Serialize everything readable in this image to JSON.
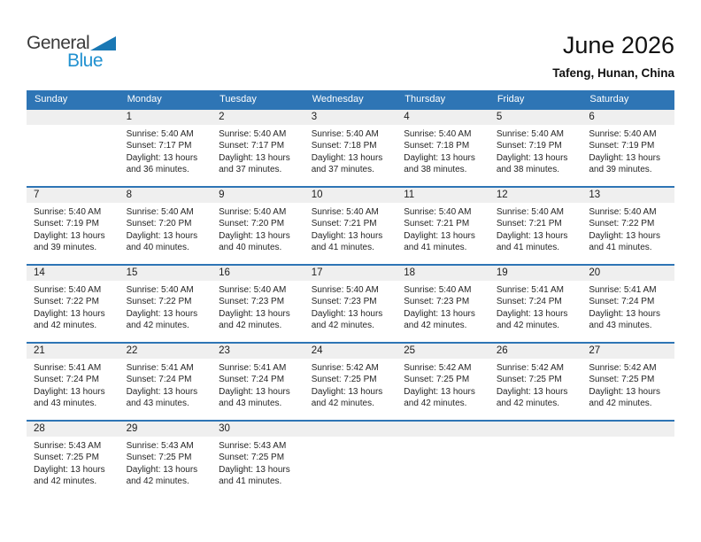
{
  "logo": {
    "part1": "General",
    "part2": "Blue"
  },
  "header": {
    "title": "June 2026",
    "location": "Tafeng, Hunan, China"
  },
  "colors": {
    "header_blue": "#2e75b5",
    "row_border_blue": "#2e75b5",
    "band_gray": "#efefef",
    "logo_text_dark": "#3b3b3b",
    "logo_text_blue": "#2191d0",
    "logo_triangle_blue": "#1a78b4"
  },
  "weekdays": [
    "Sunday",
    "Monday",
    "Tuesday",
    "Wednesday",
    "Thursday",
    "Friday",
    "Saturday"
  ],
  "weeks": [
    [
      null,
      {
        "day": "1",
        "lines": [
          "Sunrise: 5:40 AM",
          "Sunset: 7:17 PM",
          "Daylight: 13 hours",
          "and 36 minutes."
        ]
      },
      {
        "day": "2",
        "lines": [
          "Sunrise: 5:40 AM",
          "Sunset: 7:17 PM",
          "Daylight: 13 hours",
          "and 37 minutes."
        ]
      },
      {
        "day": "3",
        "lines": [
          "Sunrise: 5:40 AM",
          "Sunset: 7:18 PM",
          "Daylight: 13 hours",
          "and 37 minutes."
        ]
      },
      {
        "day": "4",
        "lines": [
          "Sunrise: 5:40 AM",
          "Sunset: 7:18 PM",
          "Daylight: 13 hours",
          "and 38 minutes."
        ]
      },
      {
        "day": "5",
        "lines": [
          "Sunrise: 5:40 AM",
          "Sunset: 7:19 PM",
          "Daylight: 13 hours",
          "and 38 minutes."
        ]
      },
      {
        "day": "6",
        "lines": [
          "Sunrise: 5:40 AM",
          "Sunset: 7:19 PM",
          "Daylight: 13 hours",
          "and 39 minutes."
        ]
      }
    ],
    [
      {
        "day": "7",
        "lines": [
          "Sunrise: 5:40 AM",
          "Sunset: 7:19 PM",
          "Daylight: 13 hours",
          "and 39 minutes."
        ]
      },
      {
        "day": "8",
        "lines": [
          "Sunrise: 5:40 AM",
          "Sunset: 7:20 PM",
          "Daylight: 13 hours",
          "and 40 minutes."
        ]
      },
      {
        "day": "9",
        "lines": [
          "Sunrise: 5:40 AM",
          "Sunset: 7:20 PM",
          "Daylight: 13 hours",
          "and 40 minutes."
        ]
      },
      {
        "day": "10",
        "lines": [
          "Sunrise: 5:40 AM",
          "Sunset: 7:21 PM",
          "Daylight: 13 hours",
          "and 41 minutes."
        ]
      },
      {
        "day": "11",
        "lines": [
          "Sunrise: 5:40 AM",
          "Sunset: 7:21 PM",
          "Daylight: 13 hours",
          "and 41 minutes."
        ]
      },
      {
        "day": "12",
        "lines": [
          "Sunrise: 5:40 AM",
          "Sunset: 7:21 PM",
          "Daylight: 13 hours",
          "and 41 minutes."
        ]
      },
      {
        "day": "13",
        "lines": [
          "Sunrise: 5:40 AM",
          "Sunset: 7:22 PM",
          "Daylight: 13 hours",
          "and 41 minutes."
        ]
      }
    ],
    [
      {
        "day": "14",
        "lines": [
          "Sunrise: 5:40 AM",
          "Sunset: 7:22 PM",
          "Daylight: 13 hours",
          "and 42 minutes."
        ]
      },
      {
        "day": "15",
        "lines": [
          "Sunrise: 5:40 AM",
          "Sunset: 7:22 PM",
          "Daylight: 13 hours",
          "and 42 minutes."
        ]
      },
      {
        "day": "16",
        "lines": [
          "Sunrise: 5:40 AM",
          "Sunset: 7:23 PM",
          "Daylight: 13 hours",
          "and 42 minutes."
        ]
      },
      {
        "day": "17",
        "lines": [
          "Sunrise: 5:40 AM",
          "Sunset: 7:23 PM",
          "Daylight: 13 hours",
          "and 42 minutes."
        ]
      },
      {
        "day": "18",
        "lines": [
          "Sunrise: 5:40 AM",
          "Sunset: 7:23 PM",
          "Daylight: 13 hours",
          "and 42 minutes."
        ]
      },
      {
        "day": "19",
        "lines": [
          "Sunrise: 5:41 AM",
          "Sunset: 7:24 PM",
          "Daylight: 13 hours",
          "and 42 minutes."
        ]
      },
      {
        "day": "20",
        "lines": [
          "Sunrise: 5:41 AM",
          "Sunset: 7:24 PM",
          "Daylight: 13 hours",
          "and 43 minutes."
        ]
      }
    ],
    [
      {
        "day": "21",
        "lines": [
          "Sunrise: 5:41 AM",
          "Sunset: 7:24 PM",
          "Daylight: 13 hours",
          "and 43 minutes."
        ]
      },
      {
        "day": "22",
        "lines": [
          "Sunrise: 5:41 AM",
          "Sunset: 7:24 PM",
          "Daylight: 13 hours",
          "and 43 minutes."
        ]
      },
      {
        "day": "23",
        "lines": [
          "Sunrise: 5:41 AM",
          "Sunset: 7:24 PM",
          "Daylight: 13 hours",
          "and 43 minutes."
        ]
      },
      {
        "day": "24",
        "lines": [
          "Sunrise: 5:42 AM",
          "Sunset: 7:25 PM",
          "Daylight: 13 hours",
          "and 42 minutes."
        ]
      },
      {
        "day": "25",
        "lines": [
          "Sunrise: 5:42 AM",
          "Sunset: 7:25 PM",
          "Daylight: 13 hours",
          "and 42 minutes."
        ]
      },
      {
        "day": "26",
        "lines": [
          "Sunrise: 5:42 AM",
          "Sunset: 7:25 PM",
          "Daylight: 13 hours",
          "and 42 minutes."
        ]
      },
      {
        "day": "27",
        "lines": [
          "Sunrise: 5:42 AM",
          "Sunset: 7:25 PM",
          "Daylight: 13 hours",
          "and 42 minutes."
        ]
      }
    ],
    [
      {
        "day": "28",
        "lines": [
          "Sunrise: 5:43 AM",
          "Sunset: 7:25 PM",
          "Daylight: 13 hours",
          "and 42 minutes."
        ]
      },
      {
        "day": "29",
        "lines": [
          "Sunrise: 5:43 AM",
          "Sunset: 7:25 PM",
          "Daylight: 13 hours",
          "and 42 minutes."
        ]
      },
      {
        "day": "30",
        "lines": [
          "Sunrise: 5:43 AM",
          "Sunset: 7:25 PM",
          "Daylight: 13 hours",
          "and 41 minutes."
        ]
      },
      null,
      null,
      null,
      null
    ]
  ]
}
